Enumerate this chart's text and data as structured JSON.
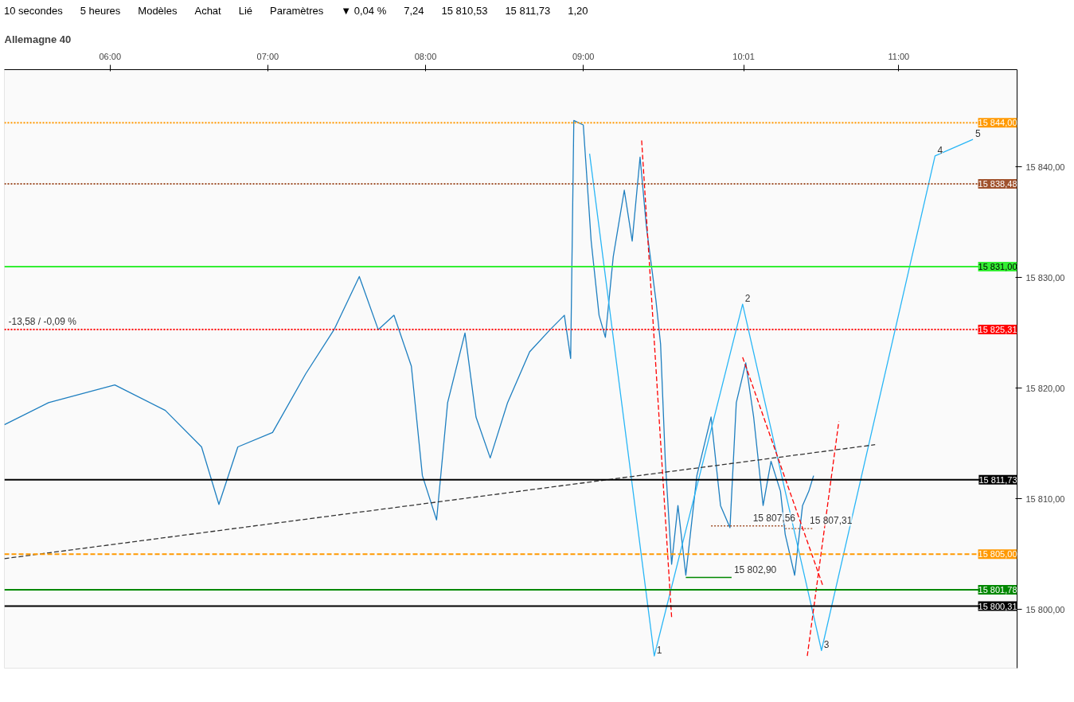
{
  "chart_data": {
    "type": "line",
    "title": "Allemagne 40",
    "annotations": [
      "10 secondes",
      "5 heures",
      "Modèles",
      "Achat",
      "Lié",
      "Paramètres",
      "▼ 0,04 %",
      "7,24",
      "15 810,53",
      "15 811,73",
      "1,20",
      {
        "text": "-13,58 / -0,09 %",
        "x": 5.34,
        "y": 15825.31
      },
      {
        "text": "15 807,56",
        "x": 10.06,
        "y": 15807.56
      },
      {
        "text": "15 807,31",
        "x": 10.42,
        "y": 15807.31
      },
      {
        "text": "15 802,90",
        "x": 9.94,
        "y": 15802.9
      },
      {
        "text": "1",
        "x": 9.45,
        "y": 15795.8
      },
      {
        "text": "2",
        "x": 10.01,
        "y": 15827.6
      },
      {
        "text": "3",
        "x": 10.51,
        "y": 15796.3
      },
      {
        "text": "4",
        "x": 11.23,
        "y": 15841.0
      },
      {
        "text": "5",
        "x": 11.47,
        "y": 15842.5
      }
    ],
    "xlim": [
      5.33,
      11.75
    ],
    "xticks": [
      {
        "value": 6,
        "label": "06:00"
      },
      {
        "value": 7,
        "label": "07:00"
      },
      {
        "value": 8,
        "label": "08:00"
      },
      {
        "value": 9,
        "label": "09:00"
      },
      {
        "value": 10.0167,
        "label": "10:01"
      },
      {
        "value": 11,
        "label": "11:00"
      }
    ],
    "ylim": [
      15794.7,
      15848.8
    ],
    "yticks": [
      {
        "value": 15800,
        "label": "15 800,00"
      },
      {
        "value": 15810,
        "label": "15 810,00"
      },
      {
        "value": 15820,
        "label": "15 820,00"
      },
      {
        "value": 15830,
        "label": "15 830,00"
      },
      {
        "value": 15840,
        "label": "15 840,00"
      }
    ],
    "grid": false,
    "series": [
      {
        "color": "#1e7fc0",
        "line_style": "solid",
        "x": [
          5.33,
          5.61,
          6.03,
          6.35,
          6.58,
          6.69,
          6.81,
          7.03,
          7.24,
          7.42,
          7.58,
          7.7,
          7.8,
          7.91,
          7.98,
          8.07,
          8.14,
          8.25,
          8.32,
          8.41,
          8.52,
          8.66,
          8.79,
          8.88,
          8.92,
          8.94,
          9.0,
          9.05,
          9.1,
          9.14,
          9.19,
          9.26,
          9.31,
          9.36,
          9.4,
          9.46,
          9.49,
          9.52,
          9.56,
          9.6,
          9.65,
          9.72,
          9.81,
          9.87,
          9.93,
          9.97,
          10.03,
          10.08,
          10.14,
          10.19,
          10.25,
          10.28,
          10.34,
          10.39,
          10.43,
          10.46
        ],
        "values": [
          15816.7,
          15818.7,
          15820.3,
          15818.0,
          15814.7,
          15809.5,
          15814.7,
          15816.0,
          15821.3,
          15825.3,
          15830.1,
          15825.3,
          15826.6,
          15822.0,
          15812.1,
          15808.1,
          15818.7,
          15825.0,
          15817.4,
          15813.7,
          15818.7,
          15823.3,
          15825.3,
          15826.6,
          15822.7,
          15844.2,
          15843.8,
          15833.3,
          15826.6,
          15824.6,
          15831.9,
          15837.9,
          15833.3,
          15840.9,
          15834.6,
          15828.0,
          15824.0,
          15813.4,
          15804.1,
          15809.4,
          15803.1,
          15812.1,
          15817.4,
          15809.4,
          15807.4,
          15818.7,
          15822.3,
          15817.4,
          15809.4,
          15813.4,
          15810.7,
          15806.8,
          15803.1,
          15809.4,
          15810.7,
          15812.1
        ]
      },
      {
        "color": "#a0522d",
        "line_style": "dotted",
        "x": [
          9.81,
          10.28
        ],
        "values": [
          15807.56,
          15807.56
        ]
      },
      {
        "color": "#a0522d",
        "line_style": "dotted",
        "x": [
          10.28,
          10.46
        ],
        "values": [
          15807.31,
          15807.31
        ]
      },
      {
        "color": "#008800",
        "line_style": "solid",
        "x": [
          9.65,
          9.94
        ],
        "values": [
          15802.9,
          15802.9
        ]
      },
      {
        "color": "#29b6f6",
        "line_style": "solid",
        "marker": "none",
        "x": [
          9.04,
          9.45,
          10.01,
          10.51,
          11.23,
          11.47
        ],
        "values": [
          15841.2,
          15795.8,
          15827.6,
          15796.3,
          15841.0,
          15842.5
        ]
      },
      {
        "color": "#333333",
        "line_style": "dashed",
        "x": [
          5.33,
          10.85
        ],
        "values": [
          15804.6,
          15814.9
        ]
      },
      {
        "color": "#ff0000",
        "line_style": "dashed",
        "x": [
          9.37,
          9.56
        ],
        "values": [
          15842.4,
          15799.3
        ]
      },
      {
        "color": "#ff0000",
        "line_style": "dashed",
        "x": [
          10.01,
          10.52
        ],
        "values": [
          15822.8,
          15802.1
        ]
      },
      {
        "color": "#ff0000",
        "line_style": "dashed",
        "x": [
          10.42,
          10.62
        ],
        "values": [
          15795.8,
          15817.0
        ]
      }
    ],
    "ref_lines": [
      {
        "axis": "y",
        "value": 15844.0,
        "label": "15 844,00",
        "color": "#ff9900",
        "line_style": "dotted"
      },
      {
        "axis": "y",
        "value": 15838.48,
        "label": "15 838,48",
        "color": "#a0522d",
        "line_style": "dotted"
      },
      {
        "axis": "y",
        "value": 15831.0,
        "label": "15 831,00",
        "color": "#33ee33",
        "line_style": "solid"
      },
      {
        "axis": "y",
        "value": 15825.31,
        "label": "15 825,31",
        "color": "#ff0000",
        "line_style": "dotted"
      },
      {
        "axis": "y",
        "value": 15811.73,
        "label": "15 811,73",
        "color": "#000000",
        "line_style": "solid"
      },
      {
        "axis": "y",
        "value": 15805.0,
        "label": "15 805,00",
        "color": "#ff9900",
        "line_style": "dashed"
      },
      {
        "axis": "y",
        "value": 15801.78,
        "label": "15 801,78",
        "color": "#008800",
        "line_style": "solid"
      },
      {
        "axis": "y",
        "value": 15800.31,
        "label": "15 800,31",
        "color": "#000000",
        "line_style": "solid"
      }
    ]
  }
}
